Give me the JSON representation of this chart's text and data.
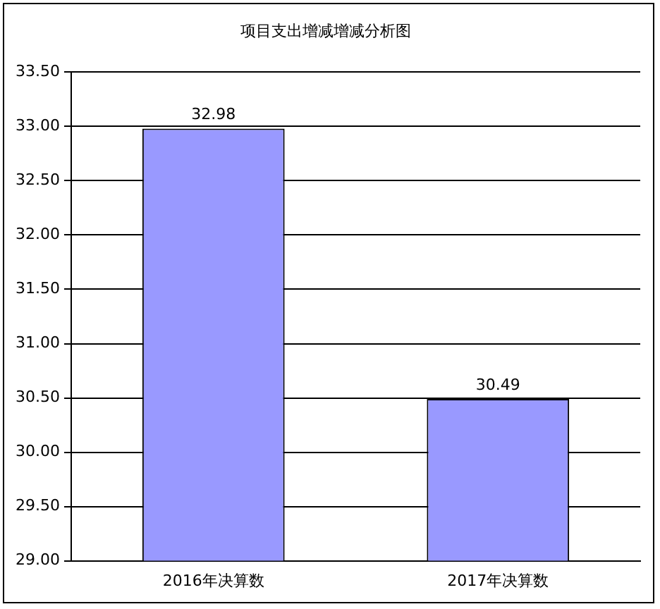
{
  "chart_data": {
    "type": "bar",
    "title": "项目支出增减增减分析图",
    "categories": [
      "2016年决算数",
      "2017年决算数"
    ],
    "values": [
      32.98,
      30.49
    ],
    "color": "#9999ff",
    "ylim": [
      29,
      33.5
    ],
    "yticks": [
      {
        "value": 29,
        "label": "29.00"
      },
      {
        "value": 29.5,
        "label": "29.50"
      },
      {
        "value": 30,
        "label": "30.00"
      },
      {
        "value": 30.5,
        "label": "30.50"
      },
      {
        "value": 31,
        "label": "31.00"
      },
      {
        "value": 31.5,
        "label": "31.50"
      },
      {
        "value": 32,
        "label": "32.00"
      },
      {
        "value": 32.5,
        "label": "32.50"
      },
      {
        "value": 33,
        "label": "33.00"
      },
      {
        "value": 33.5,
        "label": "33.50"
      }
    ],
    "grid": "y",
    "legend": false,
    "data_labels": true
  }
}
